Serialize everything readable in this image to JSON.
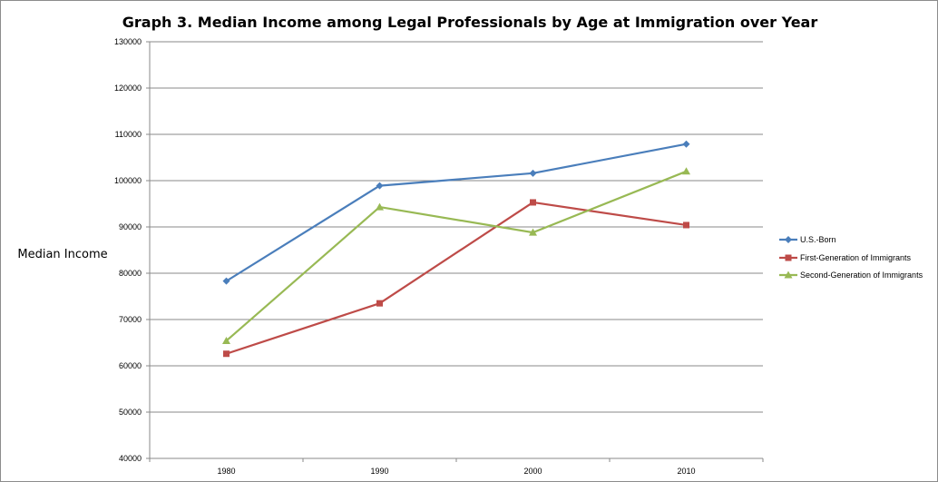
{
  "chart_data": {
    "type": "line",
    "title": "Graph 3. Median Income among Legal Professionals by Age at Immigration over Year",
    "xlabel": "",
    "ylabel": "Median Income",
    "categories": [
      "1980",
      "1990",
      "2000",
      "2010"
    ],
    "ylim": [
      40000,
      130000
    ],
    "yticks": [
      40000,
      50000,
      60000,
      70000,
      80000,
      90000,
      100000,
      110000,
      120000,
      130000
    ],
    "ytick_labels": [
      "40000",
      "50000",
      "60000",
      "70000",
      "80000",
      "90000",
      "100000",
      "110000",
      "120000",
      "130000"
    ],
    "grid": true,
    "legend_position": "right",
    "series": [
      {
        "name": "U.S.-Born",
        "color": "#4a7ebb",
        "marker": "diamond",
        "values": [
          78300,
          98900,
          101600,
          107900
        ]
      },
      {
        "name": "First-Generation of Immigrants",
        "color": "#be4b48",
        "marker": "square",
        "values": [
          62600,
          73500,
          95300,
          90400
        ]
      },
      {
        "name": "Second-Generation of Immigrants",
        "color": "#98b954",
        "marker": "triangle",
        "values": [
          65400,
          94300,
          88800,
          102000
        ]
      }
    ]
  }
}
